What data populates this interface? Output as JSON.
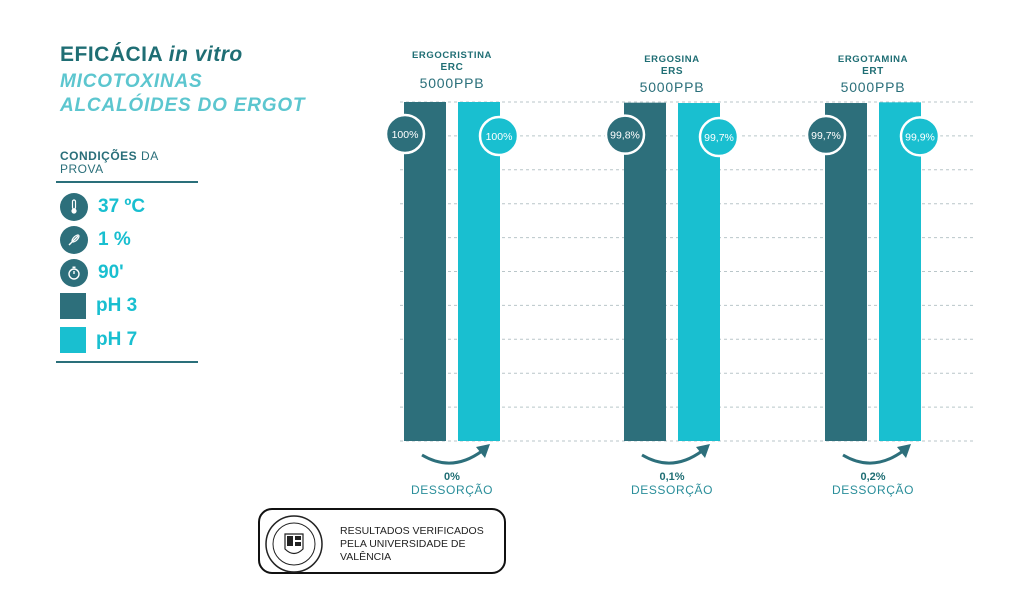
{
  "header": {
    "title_prefix": "EFICÁCIA",
    "title_italic": "in vitro",
    "subtitle_line1": "MICOTOXINAS",
    "subtitle_line2": "ALCALÓIDES DO ERGOT"
  },
  "conditions": {
    "heading_bold": "CONDIÇÕES",
    "heading_rest": "DA PROVA",
    "items": [
      {
        "icon": "thermometer-icon",
        "label": "37 ºC"
      },
      {
        "icon": "feather-icon",
        "label": "1 %"
      },
      {
        "icon": "stopwatch-icon",
        "label": "90'"
      }
    ],
    "legend": [
      {
        "label": "pH 3",
        "color": "#2d6f7b"
      },
      {
        "label": "pH 7",
        "color": "#19bfd0"
      }
    ]
  },
  "chart_data": {
    "type": "bar",
    "categories": [
      {
        "name": "ERGOCRISTINA",
        "code": "ERC",
        "dose": "5000PPB",
        "desorption_value": "0%",
        "desorption_label": "DESSORÇÃO"
      },
      {
        "name": "ERGOSINA",
        "code": "ERS",
        "dose": "5000PPB",
        "desorption_value": "0,1%",
        "desorption_label": "DESSORÇÃO"
      },
      {
        "name": "ERGOTAMINA",
        "code": "ERT",
        "dose": "5000PPB",
        "desorption_value": "0,2%",
        "desorption_label": "DESSORÇÃO"
      }
    ],
    "series": [
      {
        "name": "pH 3",
        "color": "#2d6f7b",
        "values": [
          100,
          99.8,
          99.7
        ],
        "labels": [
          "100%",
          "99,8%",
          "99,7%"
        ]
      },
      {
        "name": "pH 7",
        "color": "#19bfd0",
        "values": [
          100,
          99.7,
          99.9
        ],
        "labels": [
          "100%",
          "99,7%",
          "99,9%"
        ]
      }
    ],
    "ylim": [
      0,
      100
    ],
    "grid": true
  },
  "badge": {
    "text": "RESULTADOS VERIFICADOS PELA UNIVERSIDADE DE VALÊNCIA"
  }
}
